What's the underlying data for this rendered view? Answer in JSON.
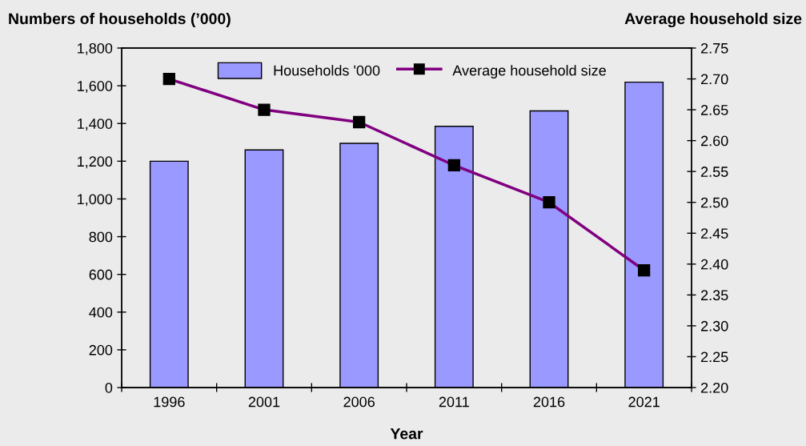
{
  "chart_data": {
    "type": "bar",
    "ylabel": "Numbers of households (’000)",
    "y2label": "Average household size",
    "xlabel": "Year",
    "categories": [
      "1996",
      "2001",
      "2006",
      "2011",
      "2016",
      "2021"
    ],
    "series": [
      {
        "name": "Households '000",
        "color": "#9999ff",
        "values": [
          1200,
          1260,
          1295,
          1385,
          1467,
          1619
        ]
      },
      {
        "name": "Average household size",
        "type": "line",
        "axis": "y2",
        "color": "#800080",
        "marker": "square",
        "line_style": "solid",
        "values": [
          2.7,
          2.65,
          2.63,
          2.56,
          2.5,
          2.39
        ]
      }
    ],
    "ylim": [
      0,
      1800
    ],
    "yticks": [
      0,
      200,
      400,
      600,
      800,
      {
        "value": 1000,
        "label": "1,000"
      },
      {
        "value": 1200,
        "label": "1,200"
      },
      {
        "value": 1400,
        "label": "1,400"
      },
      {
        "value": 1600,
        "label": "1,600"
      },
      {
        "value": 1800,
        "label": "1,800"
      }
    ],
    "y2lim": [
      2.2,
      2.75
    ],
    "y2ticks": [
      {
        "value": 2.2,
        "label": "2.20"
      },
      2.25,
      {
        "value": 2.3,
        "label": "2.30"
      },
      2.35,
      {
        "value": 2.4,
        "label": "2.40"
      },
      2.45,
      {
        "value": 2.5,
        "label": "2.50"
      },
      2.55,
      {
        "value": 2.6,
        "label": "2.60"
      },
      2.65,
      {
        "value": 2.7,
        "label": "2.70"
      },
      2.75
    ],
    "legend": "top"
  }
}
